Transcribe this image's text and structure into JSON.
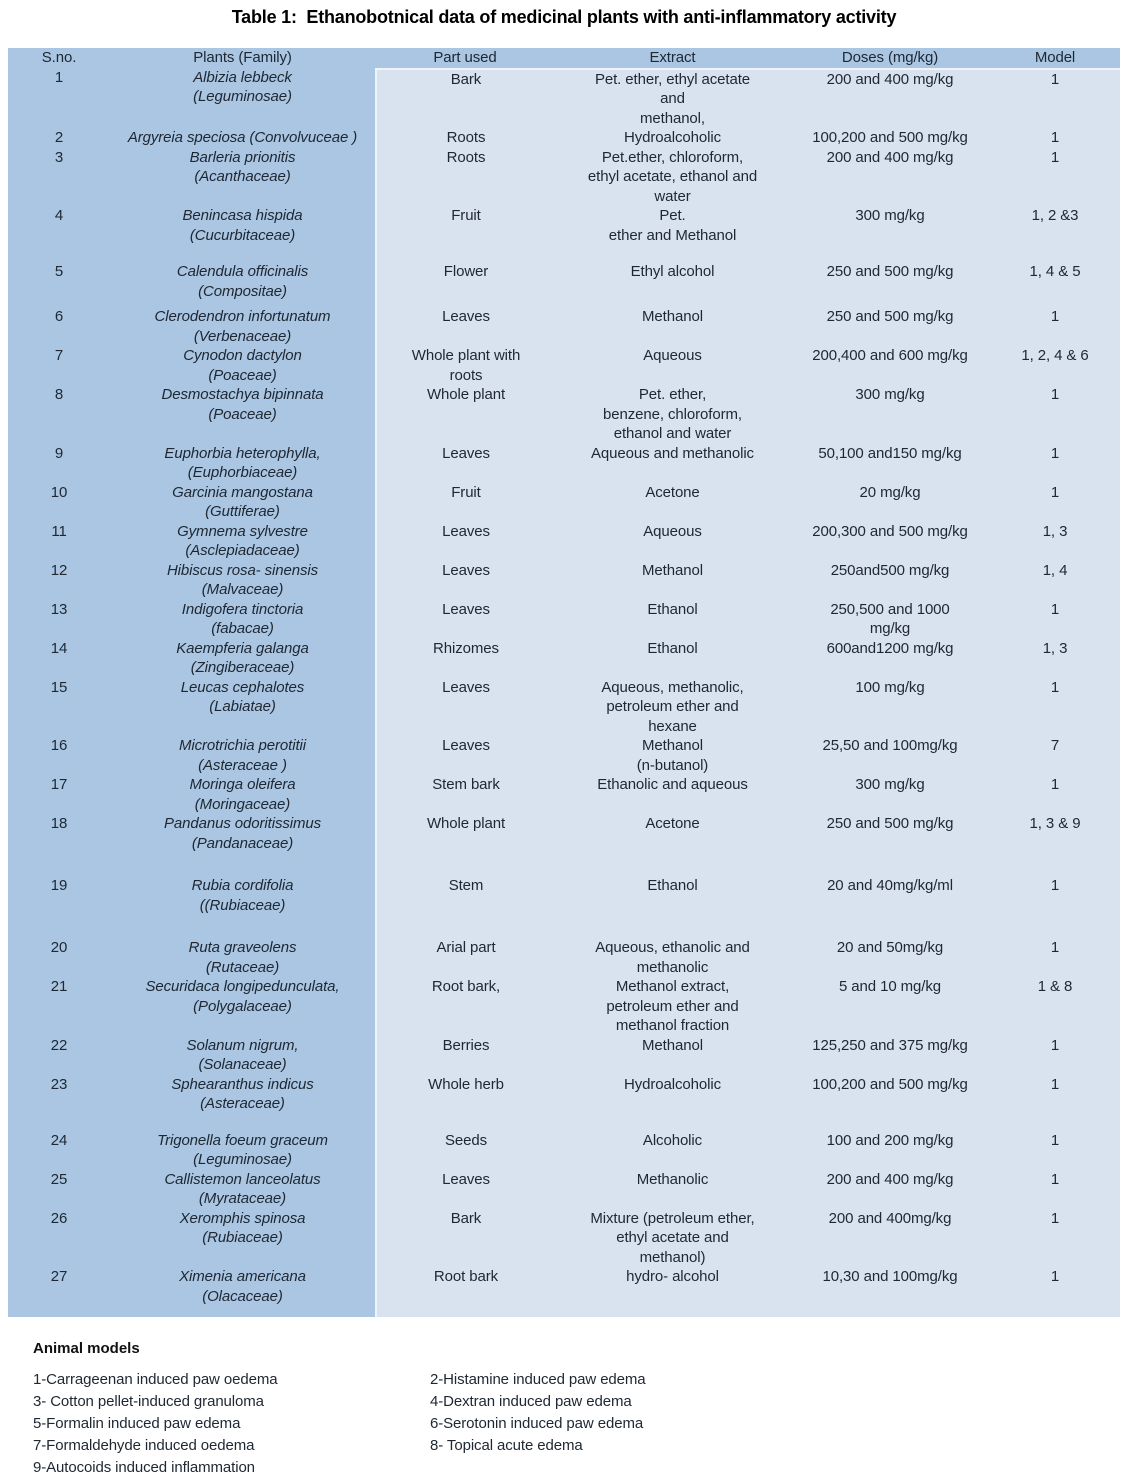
{
  "title": "Table 1:  Ethanobotnical data of medicinal plants with anti-inflammatory activity",
  "colors": {
    "table_header_and_plant_columns": "#aac6e2",
    "table_body_columns": "#d9e2ef",
    "divider_line": "#eef4fa",
    "text": "#1e2732"
  },
  "table": {
    "headers": [
      "S.no.",
      "Plants (Family)",
      "Part used",
      "Extract",
      "Doses (mg/kg)",
      "Model"
    ],
    "rows": [
      {
        "sno": [
          "1"
        ],
        "plant": [
          "Albizia lebbeck",
          "(Leguminosae)"
        ],
        "part": [
          "Bark"
        ],
        "extract": [
          "Pet. ether, ethyl acetate",
          "and",
          "methanol,"
        ],
        "doses": [
          "200 and 400 mg/kg"
        ],
        "model": [
          "1"
        ]
      },
      {
        "sno": [
          "2"
        ],
        "plant": [
          "Argyreia speciosa (Convolvuceae )"
        ],
        "part": [
          "Roots"
        ],
        "extract": [
          "Hydroalcoholic"
        ],
        "doses": [
          "100,200 and 500 mg/kg"
        ],
        "model": [
          "1"
        ]
      },
      {
        "sno": [
          "3"
        ],
        "plant": [
          "Barleria prionitis",
          "(Acanthaceae)"
        ],
        "part": [
          "Roots"
        ],
        "extract": [
          "Pet.ether, chloroform,",
          "ethyl acetate, ethanol and",
          "water"
        ],
        "doses": [
          "200 and 400 mg/kg"
        ],
        "model": [
          "1"
        ]
      },
      {
        "sno": [
          "4"
        ],
        "plant": [
          "Benincasa hispida",
          "(Cucurbitaceae)"
        ],
        "part": [
          "Fruit"
        ],
        "extract": [
          "Pet.",
          "ether and Methanol"
        ],
        "doses": [
          "300 mg/kg"
        ],
        "model": [
          "1, 2 &3"
        ],
        "minh": 56
      },
      {
        "sno": [
          "5"
        ],
        "plant": [
          "Calendula officinalis",
          "(Compositae)"
        ],
        "part": [
          "Flower"
        ],
        "extract": [
          "Ethyl alcohol"
        ],
        "doses": [
          "250 and 500 mg/kg"
        ],
        "model": [
          "1, 4 & 5"
        ],
        "minh": 45
      },
      {
        "sno": [
          "6"
        ],
        "plant": [
          "Clerodendron infortunatum",
          "(Verbenaceae)"
        ],
        "part": [
          "Leaves"
        ],
        "extract": [
          "Methanol"
        ],
        "doses": [
          "250 and 500 mg/kg"
        ],
        "model": [
          "1"
        ]
      },
      {
        "sno": [
          "7"
        ],
        "plant": [
          "Cynodon dactylon",
          "(Poaceae)"
        ],
        "part": [
          "Whole plant with",
          "roots"
        ],
        "extract": [
          "Aqueous"
        ],
        "doses": [
          "200,400 and 600 mg/kg"
        ],
        "model": [
          "1, 2, 4 & 6"
        ]
      },
      {
        "sno": [
          "8"
        ],
        "plant": [
          "Desmostachya bipinnata",
          "(Poaceae)"
        ],
        "part": [
          "Whole plant"
        ],
        "extract": [
          "Pet. ether,",
          "benzene, chloroform,",
          "ethanol and water"
        ],
        "doses": [
          "300 mg/kg"
        ],
        "model": [
          "1"
        ]
      },
      {
        "sno": [
          "9"
        ],
        "plant": [
          "Euphorbia heterophylla,",
          "(Euphorbiaceae)"
        ],
        "part": [
          "Leaves"
        ],
        "extract": [
          "Aqueous and methanolic"
        ],
        "doses": [
          "50,100 and150 mg/kg"
        ],
        "model": [
          "1"
        ]
      },
      {
        "sno": [
          "10"
        ],
        "plant": [
          "Garcinia mangostana",
          "(Guttiferae)"
        ],
        "part": [
          "Fruit"
        ],
        "extract": [
          "Acetone"
        ],
        "doses": [
          "20 mg/kg"
        ],
        "model": [
          "1"
        ]
      },
      {
        "sno": [
          "11"
        ],
        "plant": [
          "Gymnema sylvestre",
          "(Asclepiadaceae)"
        ],
        "part": [
          "Leaves"
        ],
        "extract": [
          "Aqueous"
        ],
        "doses": [
          "200,300 and 500 mg/kg"
        ],
        "model": [
          "1, 3"
        ]
      },
      {
        "sno": [
          "12"
        ],
        "plant": [
          "Hibiscus rosa- sinensis",
          "(Malvaceae)"
        ],
        "part": [
          "Leaves"
        ],
        "extract": [
          "Methanol"
        ],
        "doses": [
          "250and500 mg/kg"
        ],
        "model": [
          "1, 4"
        ]
      },
      {
        "sno": [
          "13"
        ],
        "plant": [
          "Indigofera tinctoria",
          "(fabacae)"
        ],
        "part": [
          "Leaves"
        ],
        "extract": [
          "Ethanol"
        ],
        "doses": [
          "250,500 and 1000",
          "mg/kg"
        ],
        "model": [
          "1"
        ]
      },
      {
        "sno": [
          "14"
        ],
        "plant": [
          "Kaempferia galanga",
          "(Zingiberaceae)"
        ],
        "part": [
          "Rhizomes"
        ],
        "extract": [
          "Ethanol"
        ],
        "doses": [
          "600and1200 mg/kg"
        ],
        "model": [
          "1, 3"
        ]
      },
      {
        "sno": [
          "15"
        ],
        "plant": [
          "Leucas cephalotes",
          "(Labiatae)"
        ],
        "part": [
          "Leaves"
        ],
        "extract": [
          "Aqueous, methanolic,",
          "petroleum ether and",
          "hexane"
        ],
        "doses": [
          "100 mg/kg"
        ],
        "model": [
          "1"
        ]
      },
      {
        "sno": [
          "16"
        ],
        "plant": [
          "Microtrichia perotitii",
          "(Asteraceae )"
        ],
        "part": [
          "Leaves"
        ],
        "extract": [
          "Methanol",
          "(n-butanol)"
        ],
        "doses": [
          "25,50 and 100mg/kg"
        ],
        "model": [
          "7"
        ]
      },
      {
        "sno": [
          "17"
        ],
        "plant": [
          "Moringa oleifera",
          "(Moringaceae)"
        ],
        "part": [
          "Stem bark"
        ],
        "extract": [
          "Ethanolic and aqueous"
        ],
        "doses": [
          "300 mg/kg"
        ],
        "model": [
          "1"
        ]
      },
      {
        "sno": [
          "18"
        ],
        "plant": [
          "Pandanus odoritissimus",
          "(Pandanaceae)"
        ],
        "part": [
          "Whole plant"
        ],
        "extract": [
          "Acetone"
        ],
        "doses": [
          "250 and 500 mg/kg"
        ],
        "model": [
          "1, 3 & 9"
        ],
        "minh": 62
      },
      {
        "sno": [
          "19"
        ],
        "plant": [
          "Rubia cordifolia",
          "((Rubiaceae)"
        ],
        "part": [
          "Stem"
        ],
        "extract": [
          "Ethanol"
        ],
        "doses": [
          "20 and 40mg/kg/ml"
        ],
        "model": [
          "1"
        ],
        "minh": 62
      },
      {
        "sno": [
          "20"
        ],
        "plant": [
          "Ruta graveolens",
          "(Rutaceae)"
        ],
        "part": [
          "Arial part"
        ],
        "extract": [
          "Aqueous, ethanolic and",
          "methanolic"
        ],
        "doses": [
          "20 and 50mg/kg"
        ],
        "model": [
          "1"
        ]
      },
      {
        "sno": [
          "21"
        ],
        "plant": [
          "Securidaca longipedunculata,",
          "(Polygalaceae)"
        ],
        "part": [
          "Root bark,"
        ],
        "extract": [
          "Methanol extract,",
          "petroleum ether and",
          "methanol fraction"
        ],
        "doses": [
          "5 and 10 mg/kg"
        ],
        "model": [
          "1 & 8"
        ]
      },
      {
        "sno": [
          "22"
        ],
        "plant": [
          "Solanum nigrum,",
          "(Solanaceae)"
        ],
        "part": [
          "Berries"
        ],
        "extract": [
          "Methanol"
        ],
        "doses": [
          "125,250 and 375 mg/kg"
        ],
        "model": [
          "1"
        ]
      },
      {
        "sno": [
          "23"
        ],
        "plant": [
          "Sphearanthus indicus",
          "(Asteraceae)"
        ],
        "part": [
          "Whole herb"
        ],
        "extract": [
          "Hydroalcoholic"
        ],
        "doses": [
          "100,200 and 500 mg/kg"
        ],
        "model": [
          "1"
        ],
        "minh": 56
      },
      {
        "sno": [
          "24"
        ],
        "plant": [
          "Trigonella foeum graceum",
          "(Leguminosae)"
        ],
        "part": [
          "Seeds"
        ],
        "extract": [
          "Alcoholic"
        ],
        "doses": [
          "100 and 200 mg/kg"
        ],
        "model": [
          "1"
        ]
      },
      {
        "sno": [
          "25"
        ],
        "plant": [
          "Callistemon lanceolatus",
          "(Myrataceae)"
        ],
        "part": [
          "Leaves"
        ],
        "extract": [
          "Methanolic"
        ],
        "doses": [
          "200 and 400 mg/kg"
        ],
        "model": [
          "1"
        ]
      },
      {
        "sno": [
          "26"
        ],
        "plant": [
          "Xeromphis spinosa",
          "(Rubiaceae)"
        ],
        "part": [
          "Bark"
        ],
        "extract": [
          "Mixture (petroleum ether,",
          "ethyl acetate and",
          "methanol)"
        ],
        "doses": [
          "200 and 400mg/kg"
        ],
        "model": [
          "1"
        ]
      },
      {
        "sno": [
          "27"
        ],
        "plant": [
          "Ximenia americana",
          "(Olacaceae)"
        ],
        "part": [
          "Root bark"
        ],
        "extract": [
          "hydro- alcohol"
        ],
        "doses": [
          "10,30 and 100mg/kg"
        ],
        "model": [
          "1"
        ],
        "minh": 50
      }
    ]
  },
  "animal_models": {
    "heading": "Animal models",
    "left_items": [
      "1-Carrageenan induced paw oedema",
      "3- Cotton pellet-induced granuloma",
      "5-Formalin induced paw edema",
      "7-Formaldehyde induced oedema",
      "9-Autocoids induced inflammation"
    ],
    "right_items": [
      "2-Histamine induced paw edema",
      "4-Dextran induced paw edema",
      "6-Serotonin induced paw edema",
      "8- Topical acute edema"
    ]
  }
}
